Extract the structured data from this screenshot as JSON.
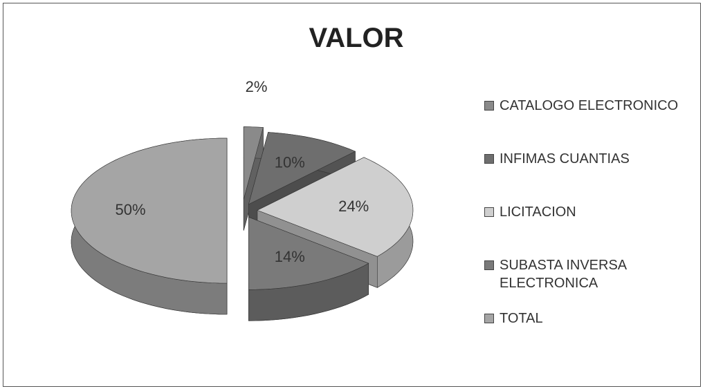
{
  "chart_data": {
    "type": "pie",
    "title": "VALOR",
    "categories": [
      "CATALOGO ELECTRONICO",
      "INFIMAS CUANTIAS",
      "LICITACION",
      "SUBASTA INVERSA ELECTRONICA",
      "TOTAL"
    ],
    "values": [
      2,
      10,
      24,
      14,
      50
    ],
    "value_labels": [
      "2%",
      "10%",
      "24%",
      "14%",
      "50%"
    ],
    "colors": [
      "#8a8a8a",
      "#6e6e6e",
      "#cfcfcf",
      "#7a7a7a",
      "#a5a5a5"
    ],
    "legend": "right"
  }
}
